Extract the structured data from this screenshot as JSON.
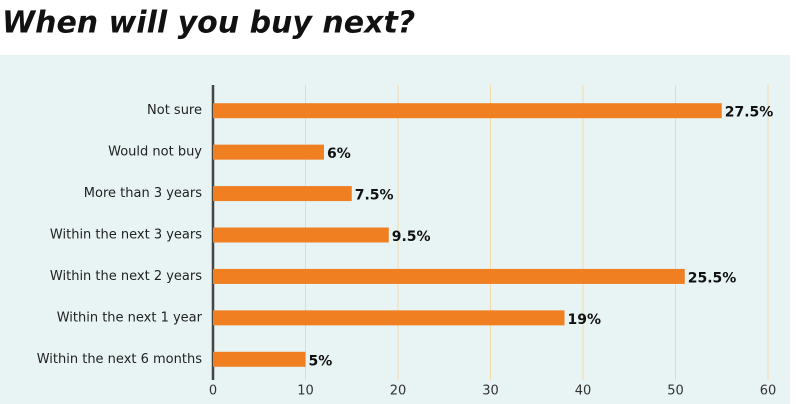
{
  "chart_data": {
    "type": "bar",
    "orientation": "horizontal",
    "title": "When will you buy next?",
    "categories": [
      "Not sure",
      "Would not buy",
      "More than 3 years",
      "Within the next 3 years",
      "Within the next 2 years",
      "Within the next 1 year",
      "Within the next 6 months"
    ],
    "values": [
      55,
      12,
      15,
      19,
      51,
      38,
      10
    ],
    "value_labels": [
      "27.5%",
      "6%",
      "7.5%",
      "9.5%",
      "25.5%",
      "19%",
      "5%"
    ],
    "color": "#f07f22",
    "xlim": [
      0,
      60
    ],
    "xticks": [
      0,
      10,
      20,
      30,
      40,
      50,
      60
    ],
    "grid": true
  }
}
